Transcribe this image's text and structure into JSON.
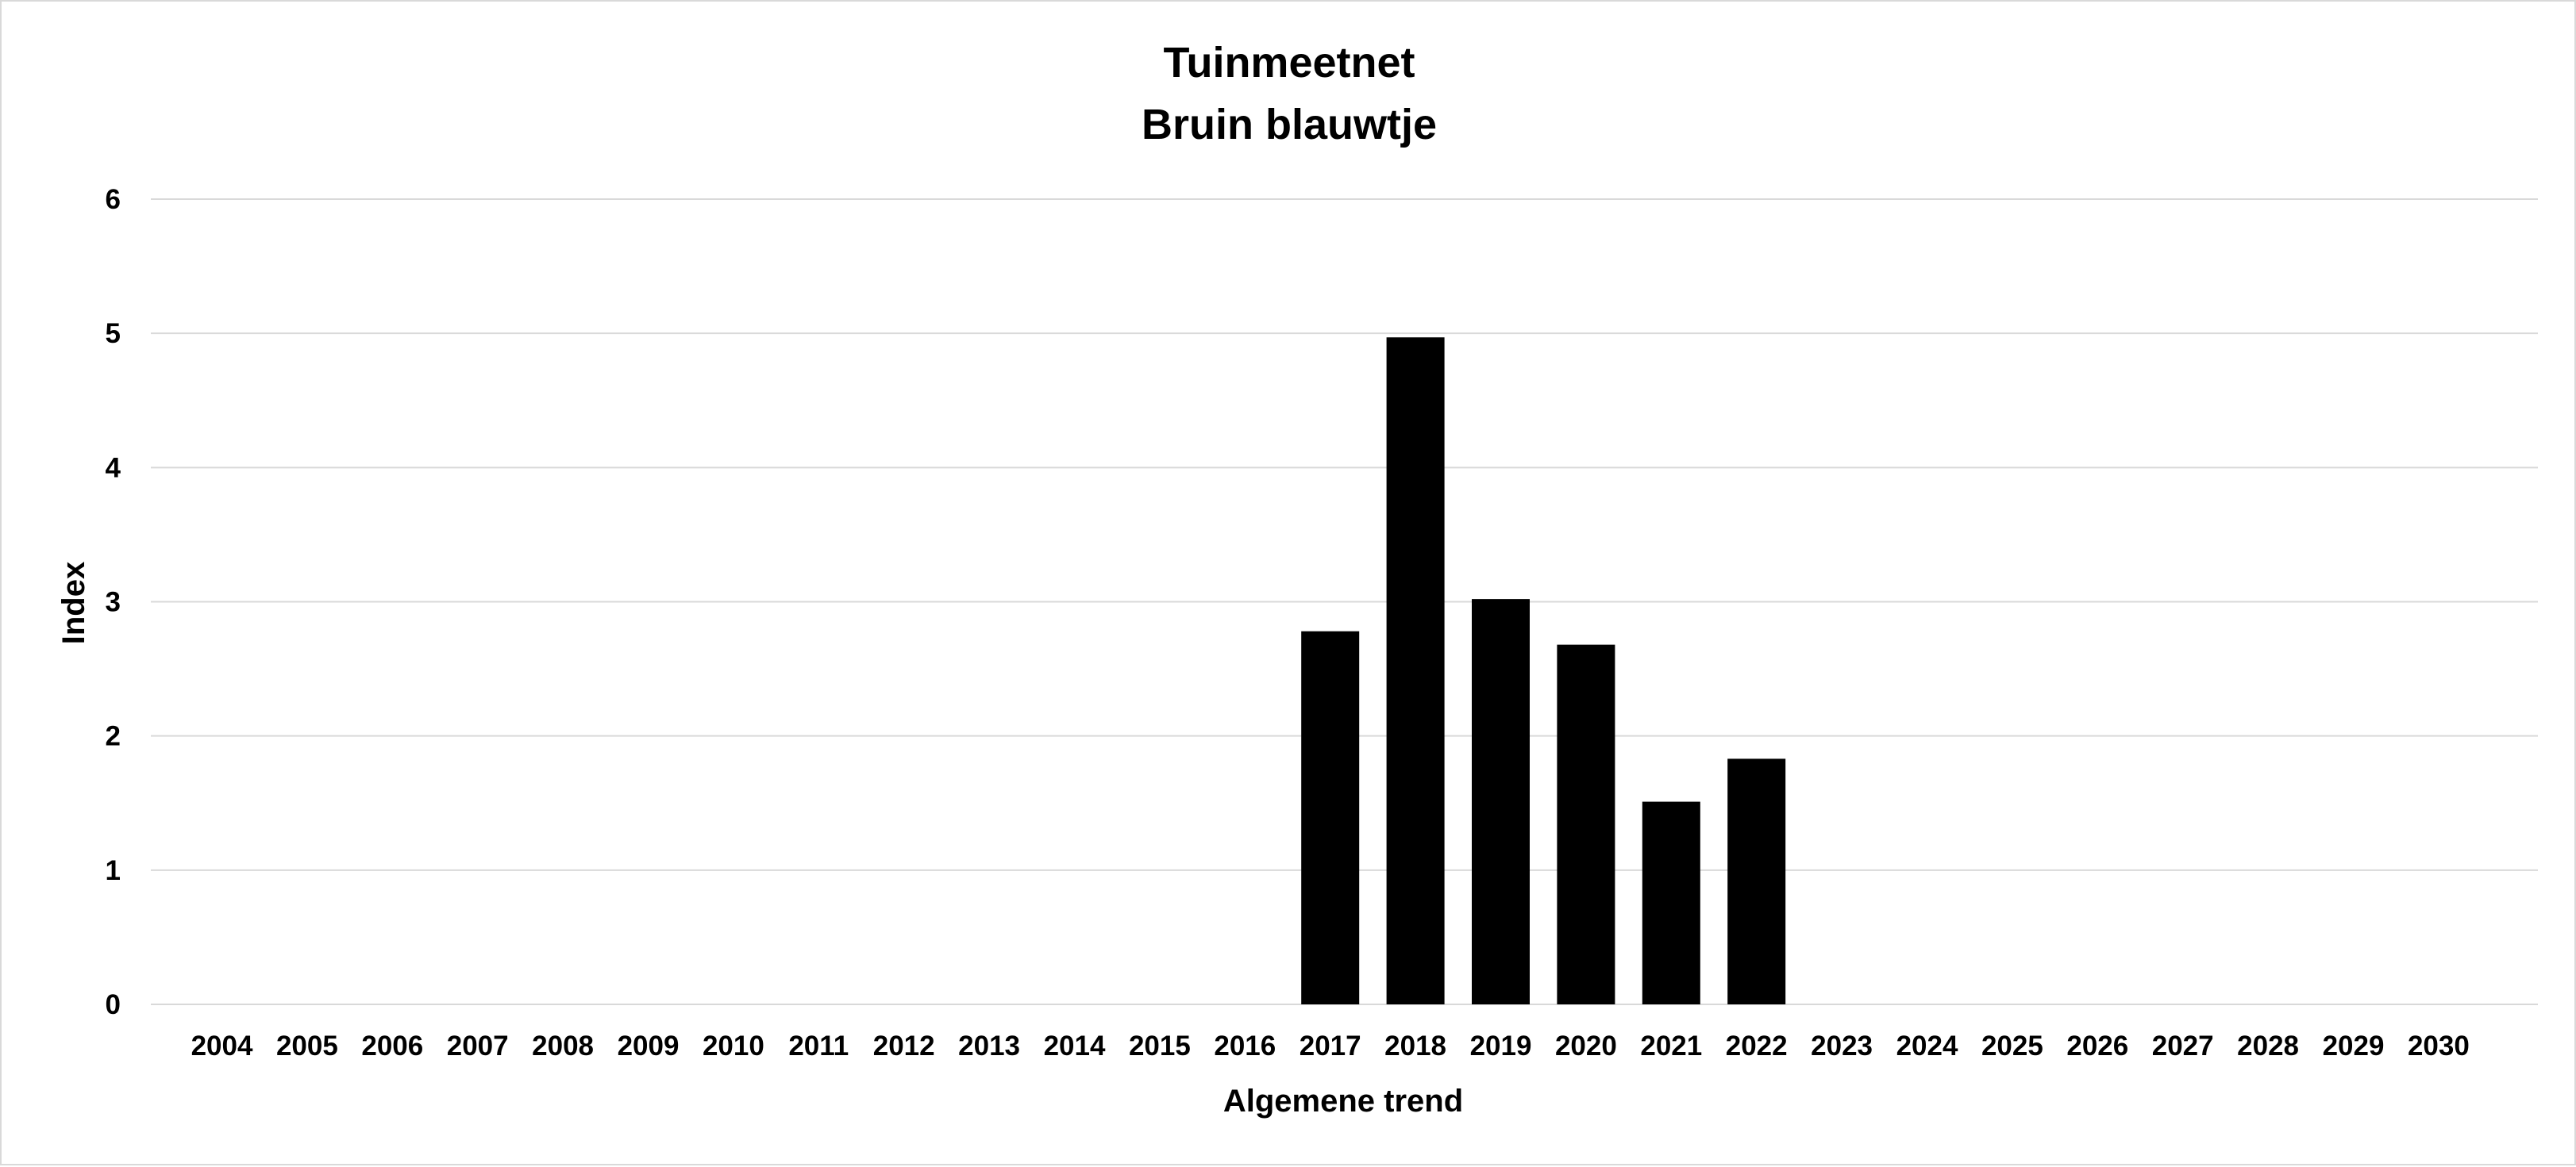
{
  "chart_data": {
    "type": "bar",
    "title": "Tuinmeetnet",
    "subtitle": "Bruin blauwtje",
    "xlabel": "Algemene trend",
    "ylabel": "Index",
    "ylim": [
      0,
      6
    ],
    "yticks": [
      "0",
      "1",
      "2",
      "3",
      "4",
      "5",
      "6"
    ],
    "grid": true,
    "legend": "none",
    "categories": [
      "2004",
      "2005",
      "2006",
      "2007",
      "2008",
      "2009",
      "2010",
      "2011",
      "2012",
      "2013",
      "2014",
      "2015",
      "2016",
      "2017",
      "2018",
      "2019",
      "2020",
      "2021",
      "2022",
      "2023",
      "2024",
      "2025",
      "2026",
      "2027",
      "2028",
      "2029",
      "2030"
    ],
    "values": [
      null,
      null,
      null,
      null,
      null,
      null,
      null,
      null,
      null,
      null,
      null,
      null,
      null,
      2.78,
      4.97,
      3.02,
      2.68,
      1.51,
      1.83,
      null,
      null,
      null,
      null,
      null,
      null,
      null,
      null
    ],
    "bar_color": "#000000",
    "grid_color": "#d9d9d9"
  }
}
